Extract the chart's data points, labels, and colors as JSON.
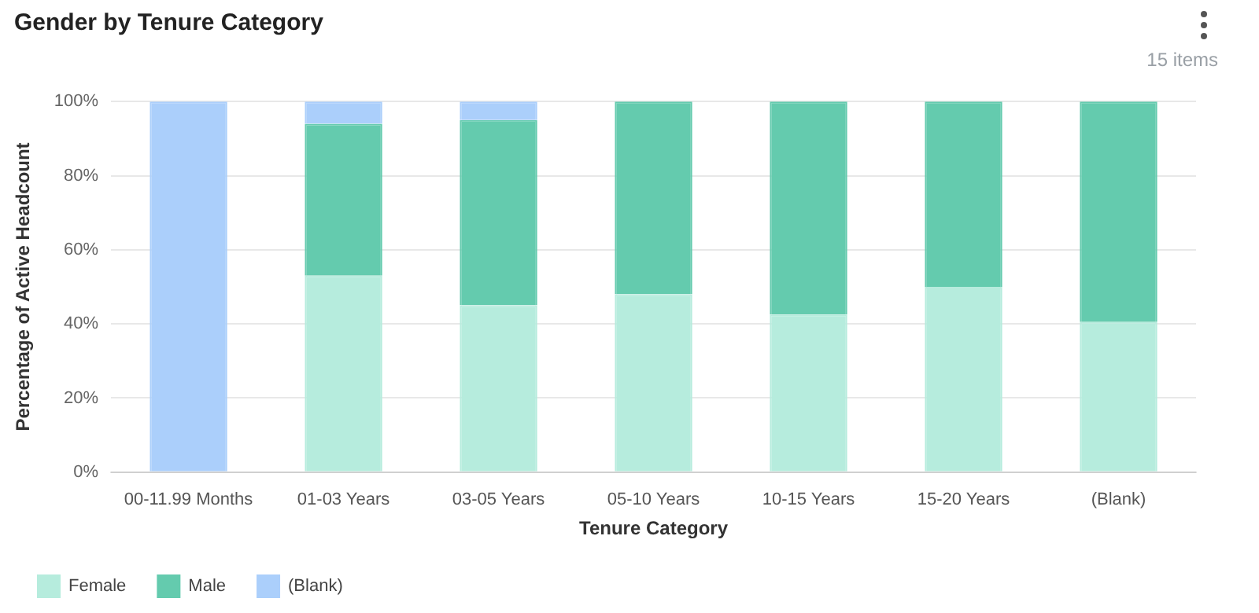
{
  "chart_data": {
    "type": "bar",
    "title": "Gender by Tenure Category",
    "xlabel": "Tenure Category",
    "ylabel": "Percentage of Active Headcount",
    "annotations": [
      "15 items"
    ],
    "categories": [
      "00-11.99 Months",
      "01-03 Years",
      "03-05 Years",
      "05-10 Years",
      "10-15 Years",
      "15-20 Years",
      "(Blank)"
    ],
    "stacked": true,
    "ylim": [
      0,
      100
    ],
    "yticks": [
      {
        "value": 0,
        "label": "0%"
      },
      {
        "value": 20,
        "label": "20%"
      },
      {
        "value": 40,
        "label": "40%"
      },
      {
        "value": 60,
        "label": "60%"
      },
      {
        "value": 80,
        "label": "80%"
      },
      {
        "value": 100,
        "label": "100%"
      }
    ],
    "grid": "y",
    "legend": "bottom left",
    "series": [
      {
        "name": "Female",
        "color": "#b6ecdd",
        "values": [
          0,
          53,
          45,
          48,
          42.5,
          50,
          40.5
        ]
      },
      {
        "name": "Male",
        "color": "#64cbae",
        "values": [
          0,
          41,
          50,
          52,
          57.5,
          50,
          59.5
        ]
      },
      {
        "name": "(Blank)",
        "color": "#abcffb",
        "values": [
          100,
          6,
          5,
          0,
          0,
          0,
          0
        ]
      }
    ]
  }
}
